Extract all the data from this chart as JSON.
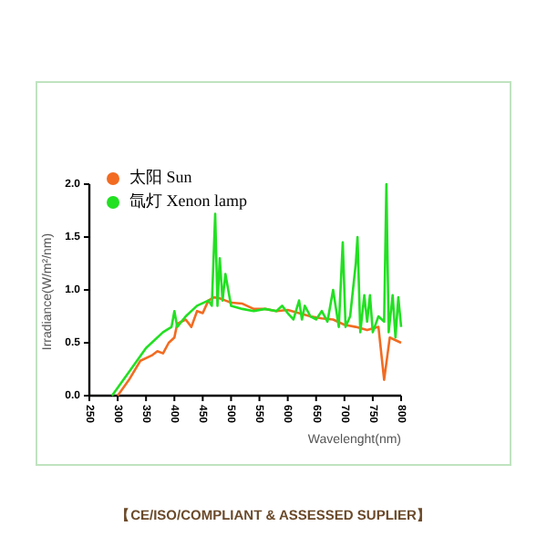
{
  "chart_data": {
    "type": "line",
    "xlabel": "Wavelenght(nm)",
    "ylabel": "Irradiance(W/m²/nm)",
    "xlim": [
      250,
      800
    ],
    "xticks": [
      250,
      300,
      350,
      400,
      450,
      500,
      550,
      600,
      650,
      700,
      750,
      800
    ],
    "ylim": [
      0,
      2
    ],
    "yticks": [
      {
        "value": 0,
        "label": "0.0"
      },
      {
        "value": 0.5,
        "label": "0.5"
      },
      {
        "value": 1,
        "label": "1.0"
      },
      {
        "value": 1.5,
        "label": "1.5"
      },
      {
        "value": 2,
        "label": "2.0"
      }
    ],
    "grid": false,
    "legend": "top left",
    "annotations": [
      "【CE/ISO/COMPLIANT & ASSESSED SUPLIER】"
    ],
    "series": [
      {
        "name": "太阳 Sun",
        "color": "#f26b21",
        "x": [
          300,
          320,
          340,
          360,
          370,
          380,
          390,
          400,
          405,
          420,
          430,
          440,
          450,
          460,
          470,
          480,
          490,
          500,
          520,
          540,
          560,
          580,
          600,
          620,
          640,
          660,
          680,
          700,
          720,
          740,
          760,
          770,
          780,
          800
        ],
        "values": [
          0,
          0.15,
          0.33,
          0.38,
          0.42,
          0.4,
          0.5,
          0.55,
          0.68,
          0.72,
          0.65,
          0.8,
          0.78,
          0.9,
          0.93,
          0.92,
          0.9,
          0.88,
          0.87,
          0.82,
          0.82,
          0.8,
          0.81,
          0.78,
          0.75,
          0.73,
          0.72,
          0.67,
          0.65,
          0.62,
          0.65,
          0.15,
          0.55,
          0.5
        ]
      },
      {
        "name": "氙灯 Xenon lamp",
        "color": "#22e022",
        "x": [
          290,
          330,
          350,
          380,
          395,
          400,
          405,
          420,
          440,
          460,
          466,
          472,
          476,
          480,
          485,
          490,
          500,
          520,
          540,
          560,
          580,
          590,
          600,
          610,
          620,
          625,
          630,
          640,
          650,
          660,
          670,
          680,
          690,
          697,
          702,
          710,
          720,
          723,
          728,
          735,
          740,
          745,
          750,
          760,
          770,
          774,
          778,
          785,
          790,
          795,
          800
        ],
        "values": [
          0,
          0.3,
          0.45,
          0.6,
          0.65,
          0.8,
          0.65,
          0.75,
          0.85,
          0.9,
          0.85,
          1.72,
          0.85,
          1.3,
          0.9,
          1.15,
          0.85,
          0.82,
          0.8,
          0.82,
          0.8,
          0.85,
          0.78,
          0.72,
          0.9,
          0.72,
          0.85,
          0.75,
          0.72,
          0.8,
          0.7,
          1.0,
          0.65,
          1.45,
          0.65,
          0.75,
          1.25,
          1.5,
          0.6,
          0.95,
          0.7,
          0.95,
          0.6,
          0.75,
          0.7,
          2.0,
          0.6,
          0.95,
          0.55,
          0.93,
          0.65
        ]
      }
    ]
  }
}
